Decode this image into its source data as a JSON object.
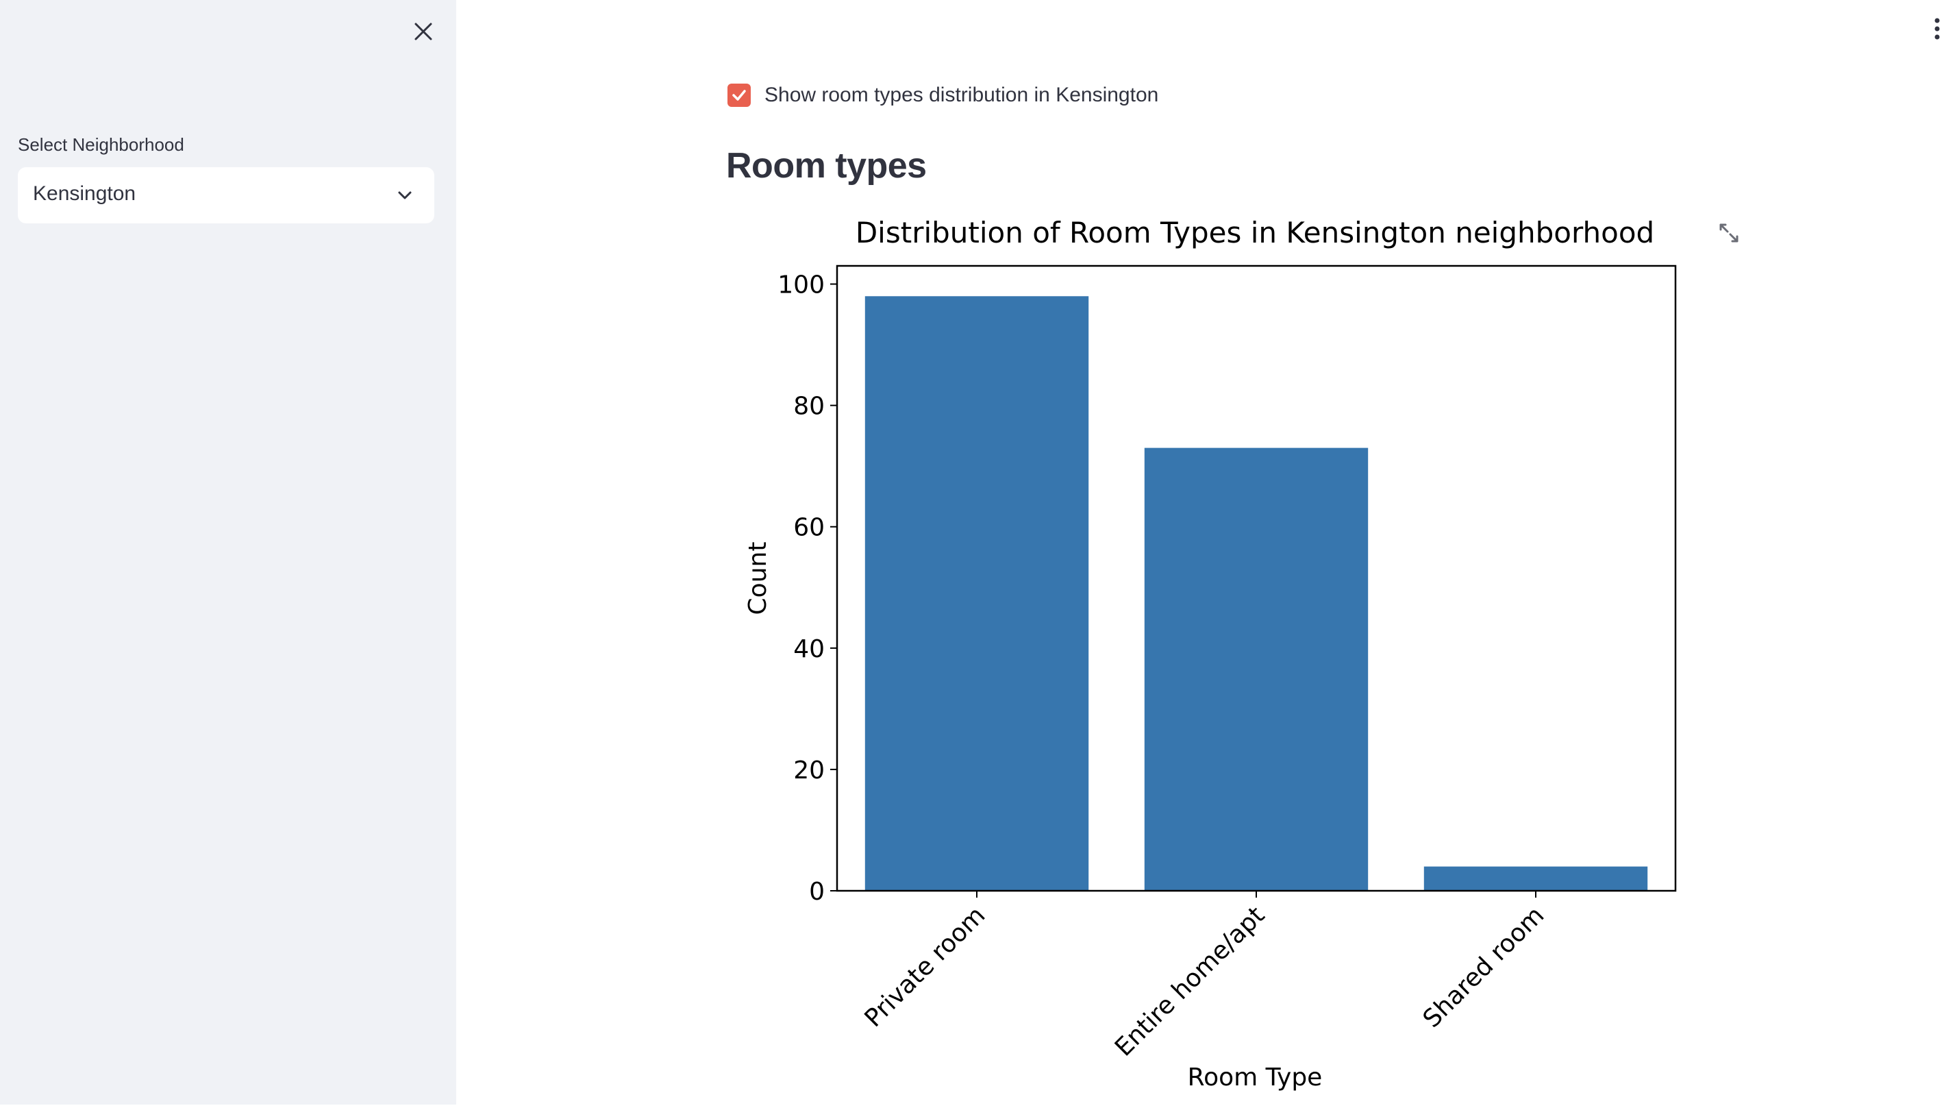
{
  "sidebar": {
    "select_label": "Select Neighborhood",
    "select_value": "Kensington",
    "close_icon": "close-icon",
    "chevron_icon": "chevron-down-icon"
  },
  "main": {
    "checkbox_label": "Show room types distribution in Kensington",
    "checkbox_checked": true,
    "section_title": "Room types",
    "fullscreen_icon": "expand-icon",
    "menu_icon": "vertical-ellipsis-icon"
  },
  "colors": {
    "sidebar_bg": "#f0f2f6",
    "accent": "#e8604f",
    "bar": "#3776ae",
    "text": "#31333f"
  },
  "chart_data": {
    "type": "bar",
    "title": "Distribution of Room Types in Kensington neighborhood",
    "xlabel": "Room Type",
    "ylabel": "Count",
    "categories": [
      "Private room",
      "Entire home/apt",
      "Shared room"
    ],
    "values": [
      98,
      73,
      4
    ],
    "ylim": [
      0,
      103
    ],
    "yticks": [
      0,
      20,
      40,
      60,
      80,
      100
    ],
    "ytick_labels": [
      "0",
      "20",
      "40",
      "60",
      "80",
      "100"
    ],
    "grid": false
  }
}
